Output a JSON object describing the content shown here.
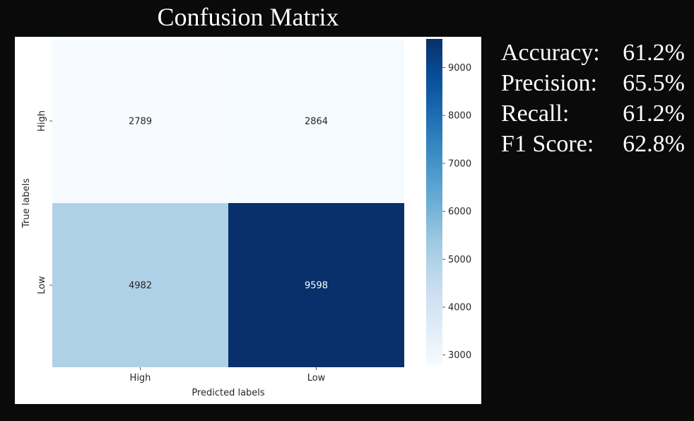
{
  "chart_data": {
    "type": "heatmap",
    "title": "Confusion Matrix",
    "xlabel": "Predicted labels",
    "ylabel": "True labels",
    "x_categories": [
      "High",
      "Low"
    ],
    "y_categories": [
      "High",
      "Low"
    ],
    "values": [
      [
        2789,
        2864
      ],
      [
        4982,
        9598
      ]
    ],
    "colorbar": {
      "min": 2789,
      "max": 9598,
      "ticks": [
        3000,
        4000,
        5000,
        6000,
        7000,
        8000,
        9000
      ]
    },
    "colormap": "Blues",
    "colors": {
      "low": "#f7fbff",
      "high": "#08306b"
    }
  },
  "metrics": [
    {
      "label": "Accuracy:",
      "value": "61.2%"
    },
    {
      "label": "Precision:",
      "value": "65.5%"
    },
    {
      "label": "Recall:",
      "value": "61.2%"
    },
    {
      "label": "F1 Score:",
      "value": "62.8%"
    }
  ]
}
